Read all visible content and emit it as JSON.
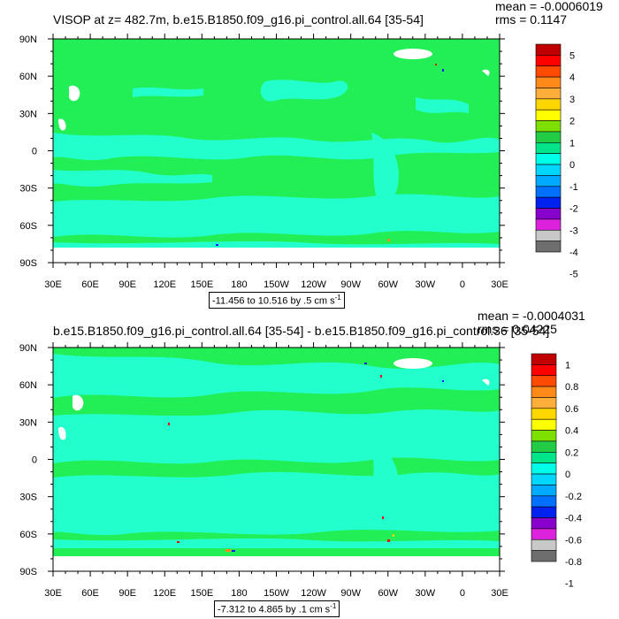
{
  "panels": [
    {
      "title": "VISOP at z= 482.7m, b.e15.B1850.f09_g16.pi_control.all.64 [35-54]",
      "mean": "mean = -0.0006019",
      "rms": "rms = 0.1147",
      "range_label": "-11.456 to 10.516 by .5 cm s",
      "range_sup": "-1",
      "colorbar_labels": [
        "5",
        "4",
        "3",
        "2",
        "1",
        "0",
        "-1",
        "-2",
        "-3",
        "-4",
        "-5"
      ],
      "colorbar_colors": [
        "#c00000",
        "#ff0000",
        "#ff4a00",
        "#ff8a1a",
        "#ffae3a",
        "#ffd700",
        "#ffff00",
        "#7ee000",
        "#22cc44",
        "#00e58a",
        "#00ffe8",
        "#00d6ff",
        "#00aaff",
        "#0070ff",
        "#0022ee",
        "#8800cc",
        "#dd22dd",
        "#c8c8c8",
        "#6e6e6e"
      ]
    },
    {
      "title": "b.e15.B1850.f09_g16.pi_control.all.64 [35-54] - b.e15.B1850.f09_g16.pi_control.36 [35-54]",
      "mean": "mean = -0.0004031",
      "rms": "rms = 0.04225",
      "range_label": "-7.312 to 4.865 by .1 cm s",
      "range_sup": "-1",
      "colorbar_labels": [
        "1",
        "0.8",
        "0.6",
        "0.4",
        "0.2",
        "0",
        "-0.2",
        "-0.4",
        "-0.6",
        "-0.8",
        "-1"
      ],
      "colorbar_colors": [
        "#c00000",
        "#ff0000",
        "#ff4a00",
        "#ff8a1a",
        "#ffae3a",
        "#ffd700",
        "#ffff00",
        "#7ee000",
        "#22cc44",
        "#00e58a",
        "#00ffe8",
        "#00d6ff",
        "#00aaff",
        "#0070ff",
        "#0022ee",
        "#8800cc",
        "#dd22dd",
        "#c8c8c8",
        "#6e6e6e"
      ]
    }
  ],
  "lon_labels": [
    "30E",
    "60E",
    "90E",
    "120E",
    "150E",
    "180",
    "150W",
    "120W",
    "90W",
    "60W",
    "30W",
    "0",
    "30E"
  ],
  "lat_labels": [
    "90N",
    "60N",
    "30N",
    "0",
    "30S",
    "60S",
    "90S"
  ],
  "field_colors": {
    "positive": "#22ee55",
    "negative": "#22ffcc",
    "land": "#ffffff"
  }
}
